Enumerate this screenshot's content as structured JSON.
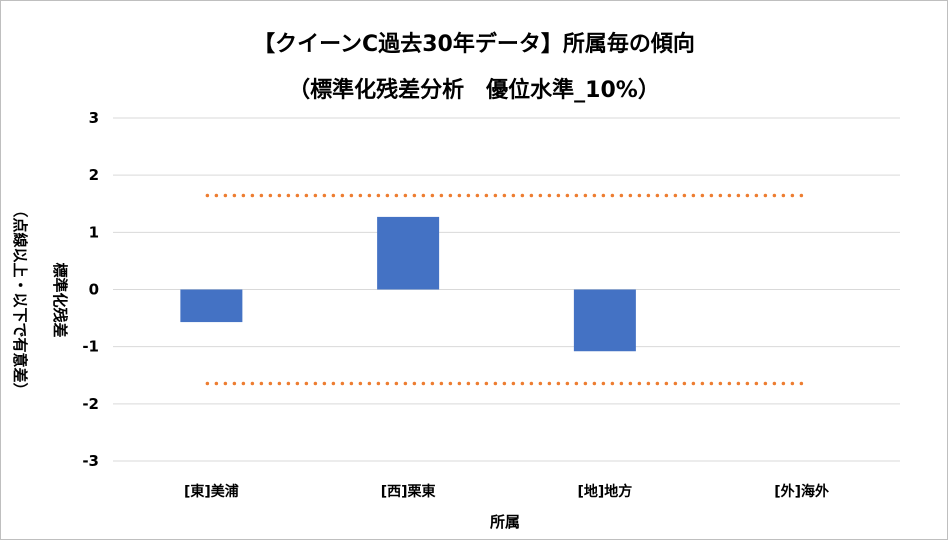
{
  "chart_data": {
    "type": "bar",
    "title": "【クイーンC過去30年データ】所属毎の傾向",
    "subtitle": "（標準化残差分析　優位水準_10%）",
    "xlabel": "所属",
    "ylabel": "標準化残差",
    "ylabel_note": "（点線以上・以下で有意差）",
    "categories": [
      "[東]美浦",
      "[西]栗東",
      "[地]地方",
      "[外]海外"
    ],
    "values": [
      -0.57,
      1.27,
      -1.08,
      0
    ],
    "ylim": [
      -3,
      3
    ],
    "yticks": [
      "3",
      "2",
      "1",
      "0",
      "-1",
      "-2",
      "-3"
    ],
    "threshold": [
      1.645,
      -1.645
    ],
    "grid": true,
    "colors": {
      "bar": "#4472C4",
      "threshold": "#ED7D31",
      "grid": "#D9D9D9"
    }
  }
}
